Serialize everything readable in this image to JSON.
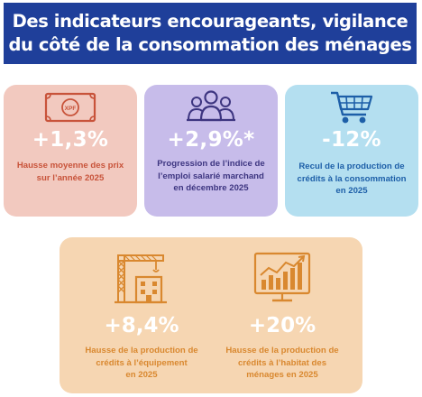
{
  "header": {
    "title_line1": "Des indicateurs encourageants, vigilance",
    "title_line2": "du côté de la consommation des ménages"
  },
  "cards": [
    {
      "icon": "banknote-icon",
      "icon_text": "XPF",
      "value": "+1,3%",
      "description": "Hausse moyenne des prix\nsur l’année 2025",
      "bg_color": "#f2c9bf",
      "accent_color": "#c8533a"
    },
    {
      "icon": "people-group-icon",
      "value": "+2,9%*",
      "description": "Progression de l’indice de\nl’emploi salarié marchand\nen décembre 2025",
      "bg_color": "#c7bcea",
      "accent_color": "#3d3580"
    },
    {
      "icon": "shopping-cart-icon",
      "value": "-12%",
      "description": "Recul de la production de\ncrédits à la consommation\nen 2025",
      "bg_color": "#b4dff0",
      "accent_color": "#1d5fa8"
    },
    {
      "icon": "crane-building-icon",
      "value": "+8,4%",
      "description": "Hausse de la production de\ncrédits à l’équipement\nen 2025",
      "bg_color": "#f6d6b2",
      "accent_color": "#d9882f"
    },
    {
      "icon": "housing-chart-icon",
      "value": "+20%",
      "description": "Hausse de la production de\ncrédits à l’habitat des\nménages en 2025",
      "bg_color": "#f6d6b2",
      "accent_color": "#d9882f"
    }
  ]
}
